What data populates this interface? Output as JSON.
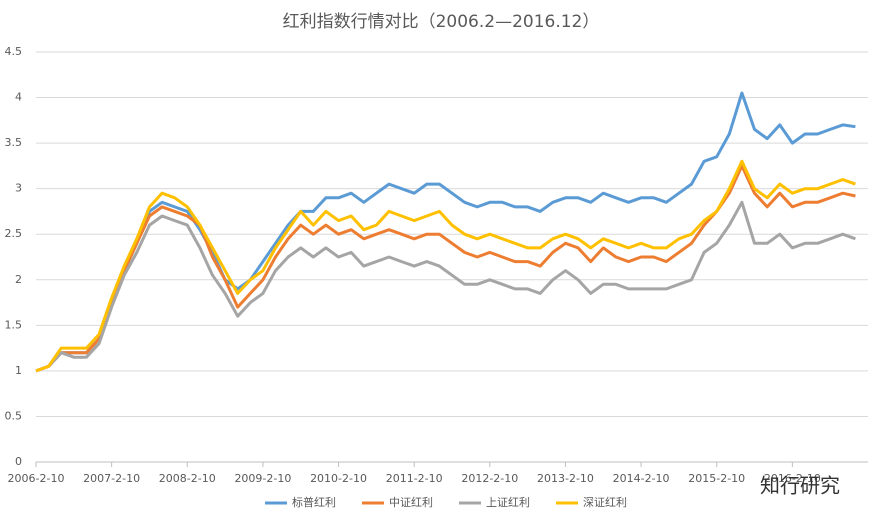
{
  "chart_data": {
    "type": "line",
    "title": "红利指数行情对比（2006.2—2016.12）",
    "watermark": "知行研究",
    "categories": [
      "2006-2-10",
      null,
      null,
      null,
      null,
      null,
      "2007-2-10",
      null,
      null,
      null,
      null,
      null,
      "2008-2-10",
      null,
      null,
      null,
      null,
      null,
      "2009-2-10",
      null,
      null,
      null,
      null,
      null,
      "2010-2-10",
      null,
      null,
      null,
      null,
      null,
      "2011-2-10",
      null,
      null,
      null,
      null,
      null,
      "2012-2-10",
      null,
      null,
      null,
      null,
      null,
      "2013-2-10",
      null,
      null,
      null,
      null,
      null,
      "2014-2-10",
      null,
      null,
      null,
      null,
      null,
      "2015-2-10",
      null,
      null,
      null,
      null,
      null,
      "2016-2-10",
      null,
      null,
      null,
      null,
      null
    ],
    "series": [
      {
        "name": "标普红利",
        "color": "#5b9bd5",
        "values": [
          1.0,
          1.05,
          1.2,
          1.2,
          1.2,
          1.35,
          1.75,
          2.1,
          2.4,
          2.75,
          2.85,
          2.8,
          2.75,
          2.55,
          2.3,
          2.0,
          1.9,
          2.0,
          2.2,
          2.4,
          2.6,
          2.75,
          2.75,
          2.9,
          2.9,
          2.95,
          2.85,
          2.95,
          3.05,
          3.0,
          2.95,
          3.05,
          3.05,
          2.95,
          2.85,
          2.8,
          2.85,
          2.85,
          2.8,
          2.8,
          2.75,
          2.85,
          2.9,
          2.9,
          2.85,
          2.95,
          2.9,
          2.85,
          2.9,
          2.9,
          2.85,
          2.95,
          3.05,
          3.3,
          3.35,
          3.6,
          4.05,
          3.65,
          3.55,
          3.7,
          3.5,
          3.6,
          3.6,
          3.65,
          3.7,
          3.68
        ]
      },
      {
        "name": "中证红利",
        "color": "#ed7d31",
        "values": [
          1.0,
          1.05,
          1.2,
          1.2,
          1.2,
          1.35,
          1.75,
          2.1,
          2.4,
          2.7,
          2.8,
          2.75,
          2.7,
          2.6,
          2.25,
          2.0,
          1.7,
          1.85,
          2.0,
          2.25,
          2.45,
          2.6,
          2.5,
          2.6,
          2.5,
          2.55,
          2.45,
          2.5,
          2.55,
          2.5,
          2.45,
          2.5,
          2.5,
          2.4,
          2.3,
          2.25,
          2.3,
          2.25,
          2.2,
          2.2,
          2.15,
          2.3,
          2.4,
          2.35,
          2.2,
          2.35,
          2.25,
          2.2,
          2.25,
          2.25,
          2.2,
          2.3,
          2.4,
          2.6,
          2.75,
          2.95,
          3.25,
          2.95,
          2.8,
          2.95,
          2.8,
          2.85,
          2.85,
          2.9,
          2.95,
          2.92
        ]
      },
      {
        "name": "上证红利",
        "color": "#a5a5a5",
        "values": [
          1.0,
          1.05,
          1.2,
          1.15,
          1.15,
          1.3,
          1.7,
          2.05,
          2.3,
          2.6,
          2.7,
          2.65,
          2.6,
          2.35,
          2.05,
          1.85,
          1.6,
          1.75,
          1.85,
          2.1,
          2.25,
          2.35,
          2.25,
          2.35,
          2.25,
          2.3,
          2.15,
          2.2,
          2.25,
          2.2,
          2.15,
          2.2,
          2.15,
          2.05,
          1.95,
          1.95,
          2.0,
          1.95,
          1.9,
          1.9,
          1.85,
          2.0,
          2.1,
          2.0,
          1.85,
          1.95,
          1.95,
          1.9,
          1.9,
          1.9,
          1.9,
          1.95,
          2.0,
          2.3,
          2.4,
          2.6,
          2.85,
          2.4,
          2.4,
          2.5,
          2.35,
          2.4,
          2.4,
          2.45,
          2.5,
          2.45
        ]
      },
      {
        "name": "深证红利",
        "color": "#ffc000",
        "values": [
          1.0,
          1.05,
          1.25,
          1.25,
          1.25,
          1.4,
          1.8,
          2.15,
          2.45,
          2.8,
          2.95,
          2.9,
          2.8,
          2.6,
          2.35,
          2.1,
          1.85,
          2.0,
          2.1,
          2.35,
          2.55,
          2.75,
          2.6,
          2.75,
          2.65,
          2.7,
          2.55,
          2.6,
          2.75,
          2.7,
          2.65,
          2.7,
          2.75,
          2.6,
          2.5,
          2.45,
          2.5,
          2.45,
          2.4,
          2.35,
          2.35,
          2.45,
          2.5,
          2.45,
          2.35,
          2.45,
          2.4,
          2.35,
          2.4,
          2.35,
          2.35,
          2.45,
          2.5,
          2.65,
          2.75,
          3.0,
          3.3,
          3.0,
          2.9,
          3.05,
          2.95,
          3.0,
          3.0,
          3.05,
          3.1,
          3.05
        ]
      }
    ],
    "ylim": [
      0,
      4.5
    ],
    "yticks": [
      0,
      0.5,
      1,
      1.5,
      2,
      2.5,
      3,
      3.5,
      4,
      4.5
    ],
    "grid": true,
    "legend": "bottom"
  }
}
